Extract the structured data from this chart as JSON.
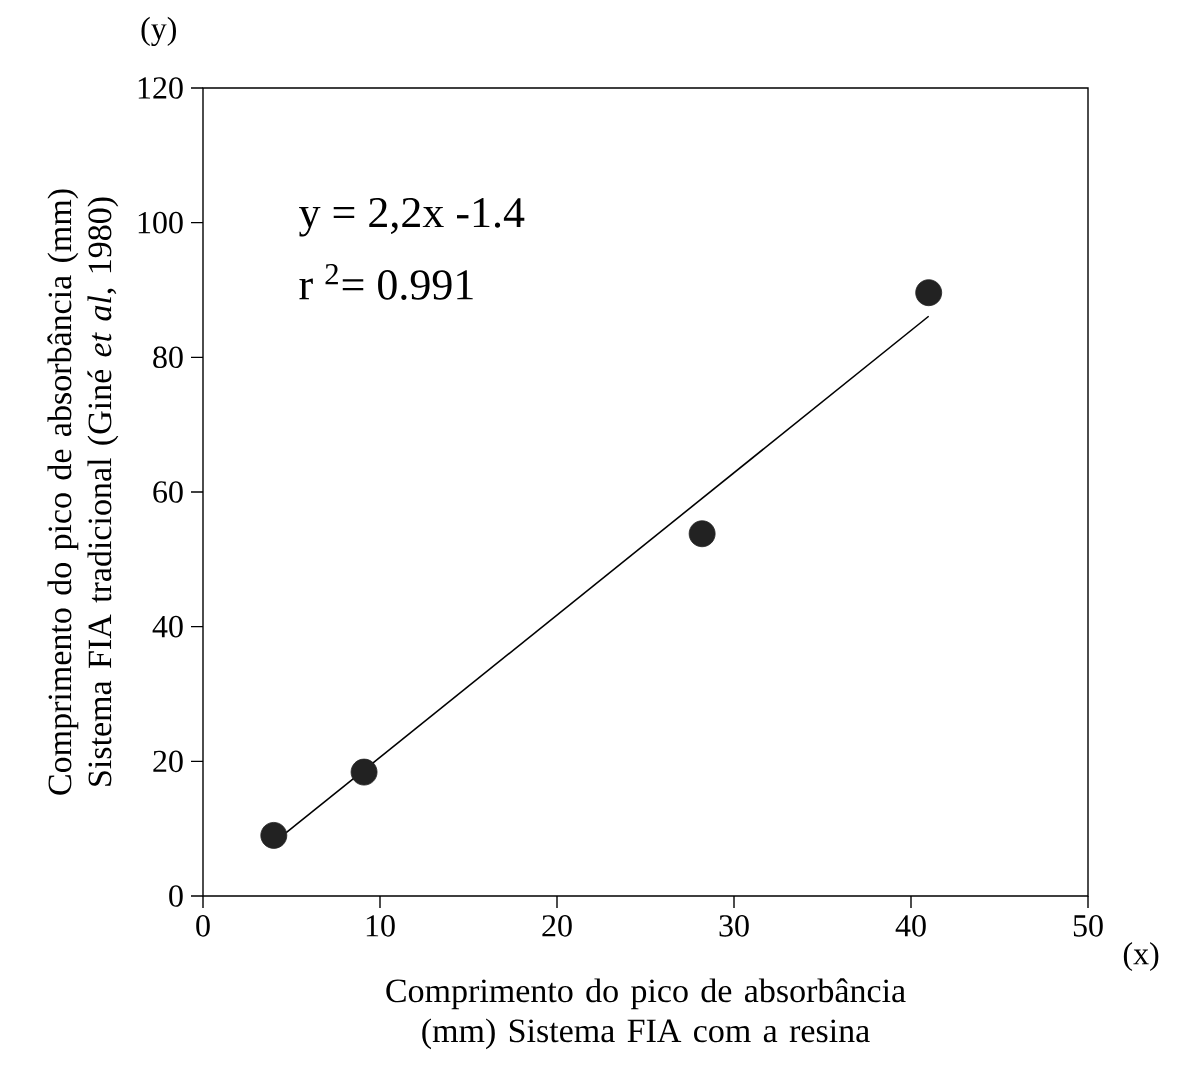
{
  "chart_data": {
    "type": "scatter",
    "xlabel": "Comprimento do pico de absorbância (mm) Sistema FIA com a resina",
    "ylabel": "Comprimento do pico de absorbância (mm) Sistema FIA tradicional (Giné *et al*, 1980)",
    "xlim": [
      0,
      50
    ],
    "ylim": [
      0,
      120
    ],
    "xticks": [
      0,
      10,
      20,
      30,
      40,
      50
    ],
    "yticks": [
      0,
      20,
      40,
      60,
      80,
      100,
      120
    ],
    "marker": "circle",
    "series": [
      {
        "color": "#222222",
        "x": [
          4.0,
          9.1,
          28.2,
          41.0
        ],
        "values": [
          9.0,
          18.4,
          53.8,
          89.6
        ]
      },
      {
        "type": "line",
        "color": "#000000",
        "marker": "none",
        "line_style": "solid",
        "x": [
          4.7,
          41.0
        ],
        "values": [
          9.4,
          86.1
        ]
      }
    ],
    "annotations": [
      "y = 2,2x -1.4",
      "r $^{2}$= 0.991",
      "(y)",
      "(x)"
    ]
  }
}
